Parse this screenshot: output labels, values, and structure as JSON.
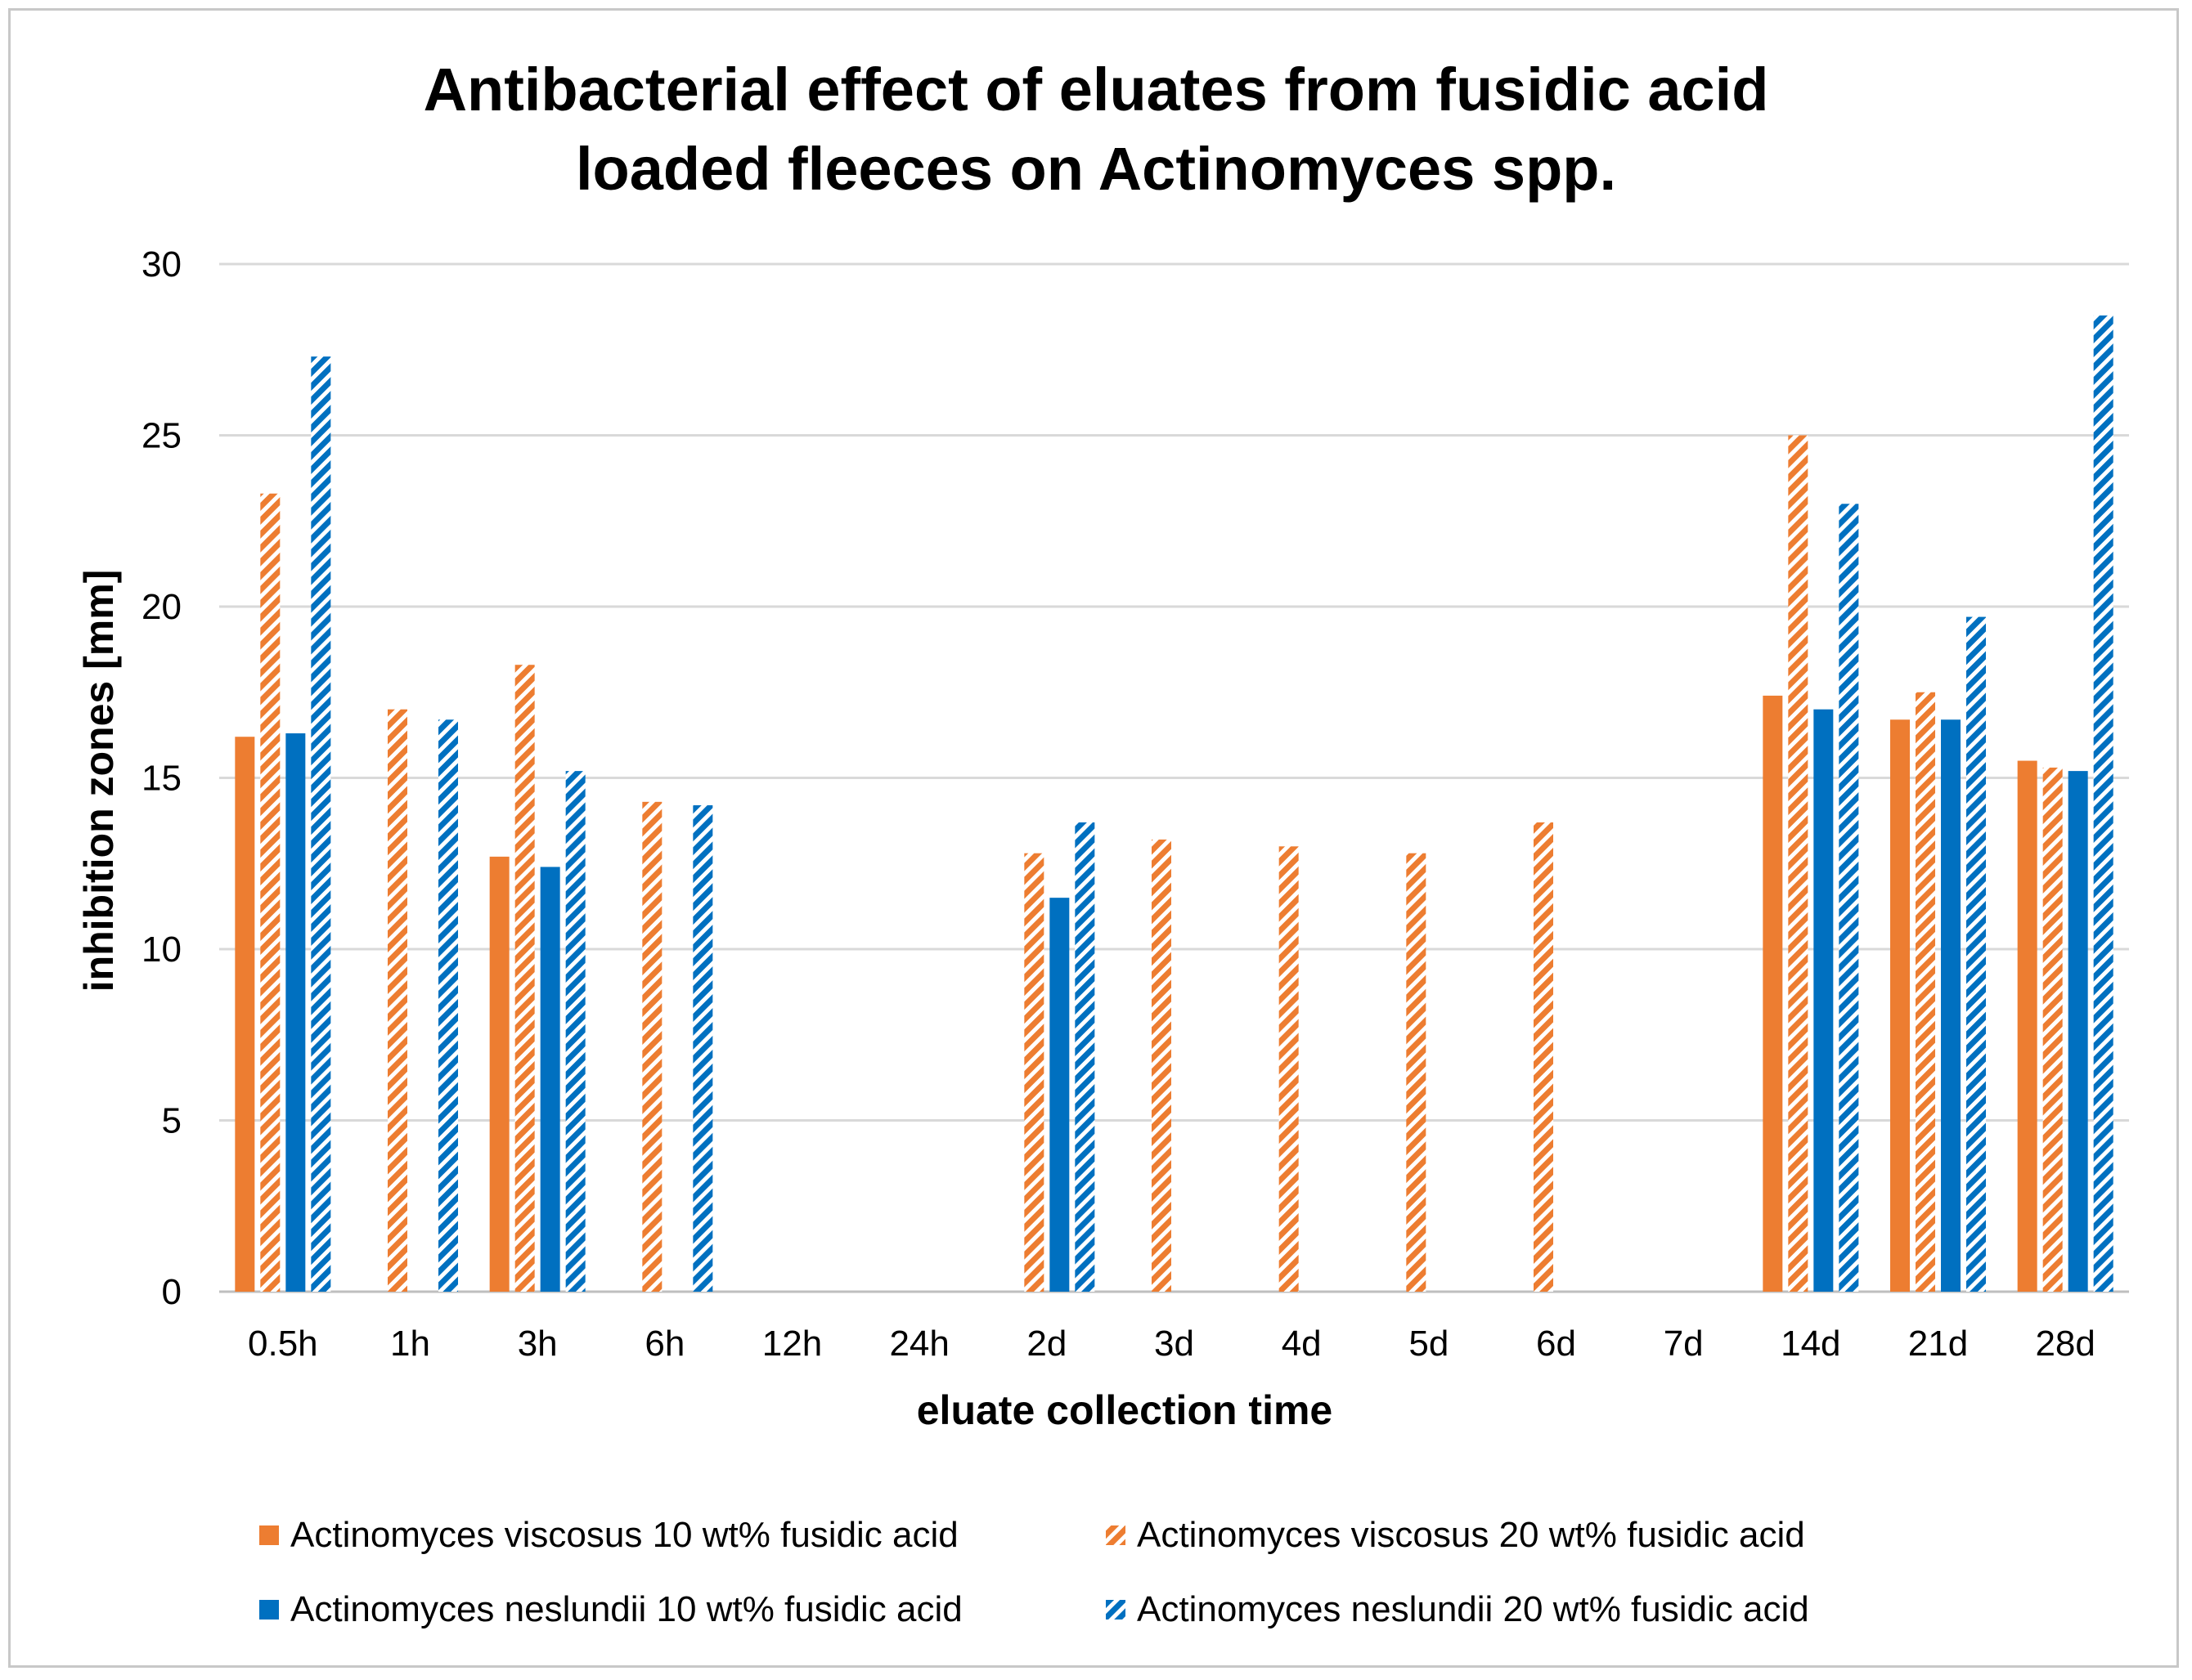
{
  "chart_data": {
    "type": "bar",
    "title_lines": [
      "Antibacterial effect of eluates from fusidic acid",
      "loaded fleeces on Actinomyces spp."
    ],
    "xlabel": "eluate collection time",
    "ylabel": "inhibition zones [mm]",
    "ylim": [
      0,
      30
    ],
    "yticks": [
      0,
      5,
      10,
      15,
      20,
      25,
      30
    ],
    "grid": true,
    "legend_position": "bottom",
    "categories": [
      "0.5h",
      "1h",
      "3h",
      "6h",
      "12h",
      "24h",
      "2d",
      "3d",
      "4d",
      "5d",
      "6d",
      "7d",
      "14d",
      "21d",
      "28d"
    ],
    "series": [
      {
        "name": "Actinomyces viscosus 10 wt% fusidic acid",
        "color": "#ED7D31",
        "pattern": "solid",
        "values": [
          16.2,
          0,
          12.7,
          0,
          0,
          0,
          0,
          0,
          0,
          0,
          0,
          0,
          17.4,
          16.7,
          15.5
        ]
      },
      {
        "name": "Actinomyces viscosus 20 wt% fusidic acid",
        "color": "#ED7D31",
        "pattern": "hatched",
        "values": [
          23.3,
          17.0,
          18.3,
          14.3,
          0,
          0,
          12.8,
          13.2,
          13.0,
          12.8,
          13.7,
          0,
          25.0,
          17.5,
          15.3
        ]
      },
      {
        "name": "Actinomyces neslundii 10 wt% fusidic acid",
        "color": "#0070C0",
        "pattern": "solid",
        "values": [
          16.3,
          0,
          12.4,
          0,
          0,
          0,
          11.5,
          0,
          0,
          0,
          0,
          0,
          17.0,
          16.7,
          15.2
        ]
      },
      {
        "name": "Actinomyces neslundii 20 wt% fusidic acid",
        "color": "#0070C0",
        "pattern": "hatched",
        "values": [
          27.3,
          16.7,
          15.2,
          14.2,
          0,
          0,
          13.7,
          0,
          0,
          0,
          0,
          0,
          23.0,
          19.7,
          28.5
        ]
      }
    ]
  }
}
